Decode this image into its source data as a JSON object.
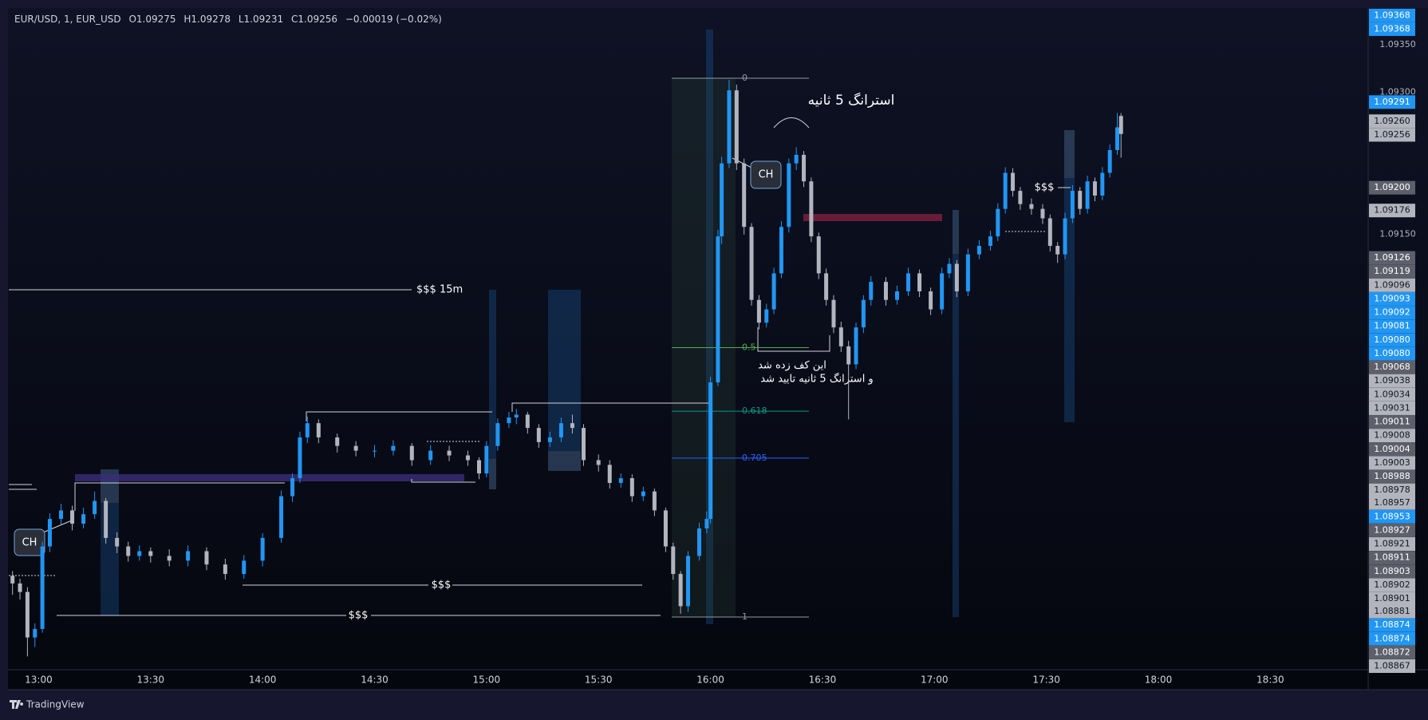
{
  "header": {
    "symbol": "EUR/USD, 1, EUR_USD",
    "ohlc": [
      {
        "k": "O",
        "v": "1.09275"
      },
      {
        "k": "H",
        "v": "1.09278"
      },
      {
        "k": "L",
        "v": "1.09231"
      },
      {
        "k": "C",
        "v": "1.09256"
      }
    ],
    "change": "−0.00019 (−0.02%)"
  },
  "footer": {
    "brand": "TradingView"
  },
  "chart_data": {
    "type": "candlestick",
    "up_color": "#2196f3",
    "down_color": "#b2b5be",
    "grid": false,
    "xlim": [
      "12:52",
      "18:56"
    ],
    "xticks": [
      "13:00",
      "13:30",
      "14:00",
      "14:30",
      "15:00",
      "15:30",
      "16:00",
      "16:30",
      "17:00",
      "17:30",
      "18:00",
      "18:30"
    ],
    "ylim": [
      1.08691,
      1.09388
    ],
    "yticks": [
      {
        "value": 1.0935,
        "label": "1.09350"
      },
      {
        "value": 1.093,
        "label": "1.09300"
      },
      {
        "value": 1.0915,
        "label": "1.09150"
      }
    ],
    "fib_levels": [
      0,
      0.5,
      0.618,
      0.705,
      1
    ],
    "fib_colors": [
      "#9598a1",
      "#4caf50",
      "#089981",
      "#2962ff",
      "#9598a1"
    ],
    "annotations": [
      "$$$ 15m",
      "$$$",
      "$$$",
      "$$$",
      "CH",
      "CH",
      "استرانگ 5 ثانیه",
      "این کف زده شد",
      "و استرانگ 5 ثانیه تایید شد"
    ],
    "price_tags": [
      {
        "label": "1.09368",
        "color": "#2196f3"
      },
      {
        "label": "1.09368",
        "color": "#2196f3"
      },
      {
        "label": "1.09291",
        "color": "#2196f3"
      },
      {
        "label": "1.09260",
        "color": "#b2b5be"
      },
      {
        "label": "1.09256",
        "color": "#b2b5be"
      },
      {
        "label": "1.09200",
        "color": "#5d606b"
      },
      {
        "label": "1.09176",
        "color": "#b2b5be"
      },
      {
        "label": "1.09126",
        "color": "#5d606b"
      },
      {
        "label": "1.09119",
        "color": "#5d606b"
      },
      {
        "label": "1.09096",
        "color": "#b2b5be"
      },
      {
        "label": "1.09093",
        "color": "#2196f3"
      },
      {
        "label": "1.09092",
        "color": "#2196f3"
      },
      {
        "label": "1.09081",
        "color": "#2196f3"
      },
      {
        "label": "1.09080",
        "color": "#2196f3"
      },
      {
        "label": "1.09080",
        "color": "#2196f3"
      },
      {
        "label": "1.09068",
        "color": "#5d606b"
      },
      {
        "label": "1.09038",
        "color": "#b2b5be"
      },
      {
        "label": "1.09034",
        "color": "#b2b5be"
      },
      {
        "label": "1.09031",
        "color": "#b2b5be"
      },
      {
        "label": "1.09011",
        "color": "#5d606b"
      },
      {
        "label": "1.09008",
        "color": "#b2b5be"
      },
      {
        "label": "1.09004",
        "color": "#5d606b"
      },
      {
        "label": "1.09003",
        "color": "#b2b5be"
      },
      {
        "label": "1.08988",
        "color": "#5d606b"
      },
      {
        "label": "1.08978",
        "color": "#b2b5be"
      },
      {
        "label": "1.08957",
        "color": "#b2b5be"
      },
      {
        "label": "1.08953",
        "color": "#2196f3"
      },
      {
        "label": "1.08927",
        "color": "#5d606b"
      },
      {
        "label": "1.08921",
        "color": "#b2b5be"
      },
      {
        "label": "1.08911",
        "color": "#5d606b"
      },
      {
        "label": "1.08903",
        "color": "#5d606b"
      },
      {
        "label": "1.08902",
        "color": "#b2b5be"
      },
      {
        "label": "1.08901",
        "color": "#b2b5be"
      },
      {
        "label": "1.08881",
        "color": "#b2b5be"
      },
      {
        "label": "1.08874",
        "color": "#2196f3"
      },
      {
        "label": "1.08874",
        "color": "#2196f3"
      },
      {
        "label": "1.08872",
        "color": "#5d606b"
      },
      {
        "label": "1.08867",
        "color": "#b2b5be"
      }
    ],
    "candles": [
      {
        "x": "12:53",
        "o": 1.0879,
        "h": 1.08795,
        "l": 1.0877,
        "c": 1.08782
      },
      {
        "x": "12:55",
        "o": 1.08782,
        "h": 1.08787,
        "l": 1.08765,
        "c": 1.08773
      },
      {
        "x": "12:57",
        "o": 1.08773,
        "h": 1.08778,
        "l": 1.08705,
        "c": 1.08725
      },
      {
        "x": "12:59",
        "o": 1.08725,
        "h": 1.0874,
        "l": 1.08715,
        "c": 1.08734
      },
      {
        "x": "13:01",
        "o": 1.08734,
        "h": 1.08826,
        "l": 1.0873,
        "c": 1.08821
      },
      {
        "x": "13:03",
        "o": 1.08821,
        "h": 1.08856,
        "l": 1.08815,
        "c": 1.0885
      },
      {
        "x": "13:06",
        "o": 1.0885,
        "h": 1.08866,
        "l": 1.08844,
        "c": 1.08859
      },
      {
        "x": "13:09",
        "o": 1.08859,
        "h": 1.08864,
        "l": 1.08838,
        "c": 1.08845
      },
      {
        "x": "13:12",
        "o": 1.08845,
        "h": 1.08862,
        "l": 1.0884,
        "c": 1.08855
      },
      {
        "x": "13:15",
        "o": 1.08855,
        "h": 1.08879,
        "l": 1.0885,
        "c": 1.08869
      },
      {
        "x": "13:18",
        "o": 1.08869,
        "h": 1.08872,
        "l": 1.08824,
        "c": 1.0883
      },
      {
        "x": "13:21",
        "o": 1.0883,
        "h": 1.08836,
        "l": 1.08814,
        "c": 1.08821
      },
      {
        "x": "13:24",
        "o": 1.08821,
        "h": 1.08826,
        "l": 1.08805,
        "c": 1.08811
      },
      {
        "x": "13:27",
        "o": 1.08811,
        "h": 1.08822,
        "l": 1.08806,
        "c": 1.08816
      },
      {
        "x": "13:30",
        "o": 1.08816,
        "h": 1.0882,
        "l": 1.08804,
        "c": 1.08811
      },
      {
        "x": "13:35",
        "o": 1.08811,
        "h": 1.08818,
        "l": 1.088,
        "c": 1.08806
      },
      {
        "x": "13:40",
        "o": 1.08806,
        "h": 1.08822,
        "l": 1.088,
        "c": 1.08816
      },
      {
        "x": "13:45",
        "o": 1.08816,
        "h": 1.0882,
        "l": 1.08796,
        "c": 1.08802
      },
      {
        "x": "13:50",
        "o": 1.08802,
        "h": 1.08808,
        "l": 1.08786,
        "c": 1.08792
      },
      {
        "x": "13:55",
        "o": 1.08792,
        "h": 1.08812,
        "l": 1.08787,
        "c": 1.08806
      },
      {
        "x": "14:00",
        "o": 1.08806,
        "h": 1.08835,
        "l": 1.088,
        "c": 1.0883
      },
      {
        "x": "14:05",
        "o": 1.0883,
        "h": 1.0888,
        "l": 1.08825,
        "c": 1.08874
      },
      {
        "x": "14:08",
        "o": 1.08874,
        "h": 1.08898,
        "l": 1.08868,
        "c": 1.08893
      },
      {
        "x": "14:10",
        "o": 1.08893,
        "h": 1.08942,
        "l": 1.08888,
        "c": 1.08936
      },
      {
        "x": "14:12",
        "o": 1.08936,
        "h": 1.08958,
        "l": 1.0893,
        "c": 1.08951
      },
      {
        "x": "14:15",
        "o": 1.08951,
        "h": 1.08955,
        "l": 1.0893,
        "c": 1.08936
      },
      {
        "x": "14:20",
        "o": 1.08936,
        "h": 1.0894,
        "l": 1.0892,
        "c": 1.08927
      },
      {
        "x": "14:25",
        "o": 1.08927,
        "h": 1.08932,
        "l": 1.08916,
        "c": 1.08922
      },
      {
        "x": "14:30",
        "o": 1.08922,
        "h": 1.08928,
        "l": 1.08915,
        "c": 1.08922
      },
      {
        "x": "14:35",
        "o": 1.08922,
        "h": 1.08933,
        "l": 1.08917,
        "c": 1.08927
      },
      {
        "x": "14:40",
        "o": 1.08927,
        "h": 1.0893,
        "l": 1.08906,
        "c": 1.08912
      },
      {
        "x": "14:45",
        "o": 1.08912,
        "h": 1.08928,
        "l": 1.08907,
        "c": 1.08922
      },
      {
        "x": "14:50",
        "o": 1.08922,
        "h": 1.08927,
        "l": 1.08911,
        "c": 1.08917
      },
      {
        "x": "14:55",
        "o": 1.08917,
        "h": 1.08922,
        "l": 1.08906,
        "c": 1.08912
      },
      {
        "x": "14:58",
        "o": 1.08912,
        "h": 1.08915,
        "l": 1.08892,
        "c": 1.08898
      },
      {
        "x": "15:00",
        "o": 1.08898,
        "h": 1.08932,
        "l": 1.08894,
        "c": 1.08927
      },
      {
        "x": "15:03",
        "o": 1.08927,
        "h": 1.08956,
        "l": 1.08922,
        "c": 1.08951
      },
      {
        "x": "15:06",
        "o": 1.08951,
        "h": 1.08963,
        "l": 1.08946,
        "c": 1.08957
      },
      {
        "x": "15:08",
        "o": 1.08957,
        "h": 1.08966,
        "l": 1.0895,
        "c": 1.0896
      },
      {
        "x": "15:11",
        "o": 1.0896,
        "h": 1.08963,
        "l": 1.0894,
        "c": 1.08946
      },
      {
        "x": "15:14",
        "o": 1.08946,
        "h": 1.0895,
        "l": 1.08925,
        "c": 1.08931
      },
      {
        "x": "15:17",
        "o": 1.08931,
        "h": 1.08942,
        "l": 1.08926,
        "c": 1.08936
      },
      {
        "x": "15:20",
        "o": 1.08936,
        "h": 1.08957,
        "l": 1.08931,
        "c": 1.08951
      },
      {
        "x": "15:23",
        "o": 1.08951,
        "h": 1.0896,
        "l": 1.0894,
        "c": 1.08946
      },
      {
        "x": "15:26",
        "o": 1.08946,
        "h": 1.0895,
        "l": 1.08906,
        "c": 1.08912
      },
      {
        "x": "15:30",
        "o": 1.08912,
        "h": 1.08918,
        "l": 1.089,
        "c": 1.08907
      },
      {
        "x": "15:33",
        "o": 1.08907,
        "h": 1.08912,
        "l": 1.08882,
        "c": 1.08888
      },
      {
        "x": "15:36",
        "o": 1.08888,
        "h": 1.08898,
        "l": 1.08883,
        "c": 1.08893
      },
      {
        "x": "15:39",
        "o": 1.08893,
        "h": 1.08897,
        "l": 1.08868,
        "c": 1.08874
      },
      {
        "x": "15:42",
        "o": 1.08874,
        "h": 1.08884,
        "l": 1.08869,
        "c": 1.08879
      },
      {
        "x": "15:45",
        "o": 1.08879,
        "h": 1.08882,
        "l": 1.08853,
        "c": 1.08859
      },
      {
        "x": "15:48",
        "o": 1.08859,
        "h": 1.08862,
        "l": 1.08815,
        "c": 1.08821
      },
      {
        "x": "15:50",
        "o": 1.08821,
        "h": 1.08825,
        "l": 1.08786,
        "c": 1.08792
      },
      {
        "x": "15:52",
        "o": 1.08792,
        "h": 1.08795,
        "l": 1.0875,
        "c": 1.08758
      },
      {
        "x": "15:54",
        "o": 1.08758,
        "h": 1.08816,
        "l": 1.08752,
        "c": 1.08811
      },
      {
        "x": "15:57",
        "o": 1.08811,
        "h": 1.08846,
        "l": 1.08806,
        "c": 1.0884
      },
      {
        "x": "15:59",
        "o": 1.0884,
        "h": 1.08858,
        "l": 1.08835,
        "c": 1.0885
      },
      {
        "x": "16:00",
        "o": 1.0885,
        "h": 1.09,
        "l": 1.08845,
        "c": 1.08994
      },
      {
        "x": "16:02",
        "o": 1.08994,
        "h": 1.09155,
        "l": 1.0899,
        "c": 1.09148
      },
      {
        "x": "16:03",
        "o": 1.09148,
        "h": 1.09232,
        "l": 1.0914,
        "c": 1.09225
      },
      {
        "x": "16:05",
        "o": 1.09225,
        "h": 1.09313,
        "l": 1.0922,
        "c": 1.09302
      },
      {
        "x": "16:07",
        "o": 1.09302,
        "h": 1.09308,
        "l": 1.09218,
        "c": 1.09225
      },
      {
        "x": "16:09",
        "o": 1.09225,
        "h": 1.0923,
        "l": 1.0915,
        "c": 1.09158
      },
      {
        "x": "16:11",
        "o": 1.09158,
        "h": 1.09162,
        "l": 1.09075,
        "c": 1.09081
      },
      {
        "x": "16:13",
        "o": 1.09081,
        "h": 1.09086,
        "l": 1.0905,
        "c": 1.09057
      },
      {
        "x": "16:15",
        "o": 1.09057,
        "h": 1.09077,
        "l": 1.09052,
        "c": 1.09071
      },
      {
        "x": "16:17",
        "o": 1.09071,
        "h": 1.09115,
        "l": 1.09066,
        "c": 1.09109
      },
      {
        "x": "16:19",
        "o": 1.09109,
        "h": 1.09164,
        "l": 1.09104,
        "c": 1.09158
      },
      {
        "x": "16:21",
        "o": 1.09158,
        "h": 1.0923,
        "l": 1.09152,
        "c": 1.09225
      },
      {
        "x": "16:23",
        "o": 1.09225,
        "h": 1.09242,
        "l": 1.09218,
        "c": 1.09234
      },
      {
        "x": "16:25",
        "o": 1.09234,
        "h": 1.09238,
        "l": 1.092,
        "c": 1.09206
      },
      {
        "x": "16:27",
        "o": 1.09206,
        "h": 1.0921,
        "l": 1.09142,
        "c": 1.09148
      },
      {
        "x": "16:29",
        "o": 1.09148,
        "h": 1.09152,
        "l": 1.09103,
        "c": 1.09109
      },
      {
        "x": "16:31",
        "o": 1.09109,
        "h": 1.09114,
        "l": 1.09075,
        "c": 1.09081
      },
      {
        "x": "16:33",
        "o": 1.09081,
        "h": 1.09086,
        "l": 1.09046,
        "c": 1.09052
      },
      {
        "x": "16:35",
        "o": 1.09052,
        "h": 1.09058,
        "l": 1.09026,
        "c": 1.09032
      },
      {
        "x": "16:37",
        "o": 1.09032,
        "h": 1.09038,
        "l": 1.08955,
        "c": 1.09013
      },
      {
        "x": "16:39",
        "o": 1.09013,
        "h": 1.09057,
        "l": 1.09008,
        "c": 1.09052
      },
      {
        "x": "16:41",
        "o": 1.09052,
        "h": 1.09086,
        "l": 1.09046,
        "c": 1.09081
      },
      {
        "x": "16:43",
        "o": 1.09081,
        "h": 1.09106,
        "l": 1.09075,
        "c": 1.091
      },
      {
        "x": "16:47",
        "o": 1.091,
        "h": 1.09105,
        "l": 1.09075,
        "c": 1.09081
      },
      {
        "x": "16:50",
        "o": 1.09081,
        "h": 1.09096,
        "l": 1.09076,
        "c": 1.0909
      },
      {
        "x": "16:53",
        "o": 1.0909,
        "h": 1.09115,
        "l": 1.09085,
        "c": 1.09109
      },
      {
        "x": "16:56",
        "o": 1.09109,
        "h": 1.09113,
        "l": 1.09084,
        "c": 1.0909
      },
      {
        "x": "16:59",
        "o": 1.0909,
        "h": 1.09094,
        "l": 1.09065,
        "c": 1.09071
      },
      {
        "x": "17:02",
        "o": 1.09071,
        "h": 1.09115,
        "l": 1.09066,
        "c": 1.09109
      },
      {
        "x": "17:04",
        "o": 1.09109,
        "h": 1.09125,
        "l": 1.09104,
        "c": 1.09119
      },
      {
        "x": "17:06",
        "o": 1.09119,
        "h": 1.09123,
        "l": 1.09084,
        "c": 1.0909
      },
      {
        "x": "17:09",
        "o": 1.0909,
        "h": 1.09135,
        "l": 1.09085,
        "c": 1.09129
      },
      {
        "x": "17:12",
        "o": 1.09129,
        "h": 1.09144,
        "l": 1.09124,
        "c": 1.09138
      },
      {
        "x": "17:15",
        "o": 1.09138,
        "h": 1.09154,
        "l": 1.09133,
        "c": 1.09148
      },
      {
        "x": "17:17",
        "o": 1.09148,
        "h": 1.09183,
        "l": 1.09143,
        "c": 1.09177
      },
      {
        "x": "17:19",
        "o": 1.09177,
        "h": 1.09221,
        "l": 1.09172,
        "c": 1.09215
      },
      {
        "x": "17:21",
        "o": 1.09215,
        "h": 1.0922,
        "l": 1.0919,
        "c": 1.09196
      },
      {
        "x": "17:23",
        "o": 1.09196,
        "h": 1.092,
        "l": 1.09176,
        "c": 1.09182
      },
      {
        "x": "17:26",
        "o": 1.09182,
        "h": 1.09188,
        "l": 1.09171,
        "c": 1.09177
      },
      {
        "x": "17:29",
        "o": 1.09177,
        "h": 1.09182,
        "l": 1.09161,
        "c": 1.09167
      },
      {
        "x": "17:31",
        "o": 1.09167,
        "h": 1.09171,
        "l": 1.09132,
        "c": 1.09138
      },
      {
        "x": "17:33",
        "o": 1.09138,
        "h": 1.09142,
        "l": 1.0912,
        "c": 1.09129
      },
      {
        "x": "17:35",
        "o": 1.09129,
        "h": 1.09173,
        "l": 1.09124,
        "c": 1.09167
      },
      {
        "x": "17:37",
        "o": 1.09167,
        "h": 1.09202,
        "l": 1.09162,
        "c": 1.09196
      },
      {
        "x": "17:39",
        "o": 1.09196,
        "h": 1.092,
        "l": 1.09171,
        "c": 1.09177
      },
      {
        "x": "17:41",
        "o": 1.09177,
        "h": 1.09212,
        "l": 1.09172,
        "c": 1.09206
      },
      {
        "x": "17:43",
        "o": 1.09206,
        "h": 1.0921,
        "l": 1.09185,
        "c": 1.09191
      },
      {
        "x": "17:45",
        "o": 1.09191,
        "h": 1.09221,
        "l": 1.09186,
        "c": 1.09215
      },
      {
        "x": "17:47",
        "o": 1.09215,
        "h": 1.09245,
        "l": 1.0921,
        "c": 1.09239
      },
      {
        "x": "17:49",
        "o": 1.09239,
        "h": 1.09278,
        "l": 1.09234,
        "c": 1.09263
      },
      {
        "x": "17:50",
        "o": 1.09275,
        "h": 1.09278,
        "l": 1.09231,
        "c": 1.09256
      }
    ]
  }
}
